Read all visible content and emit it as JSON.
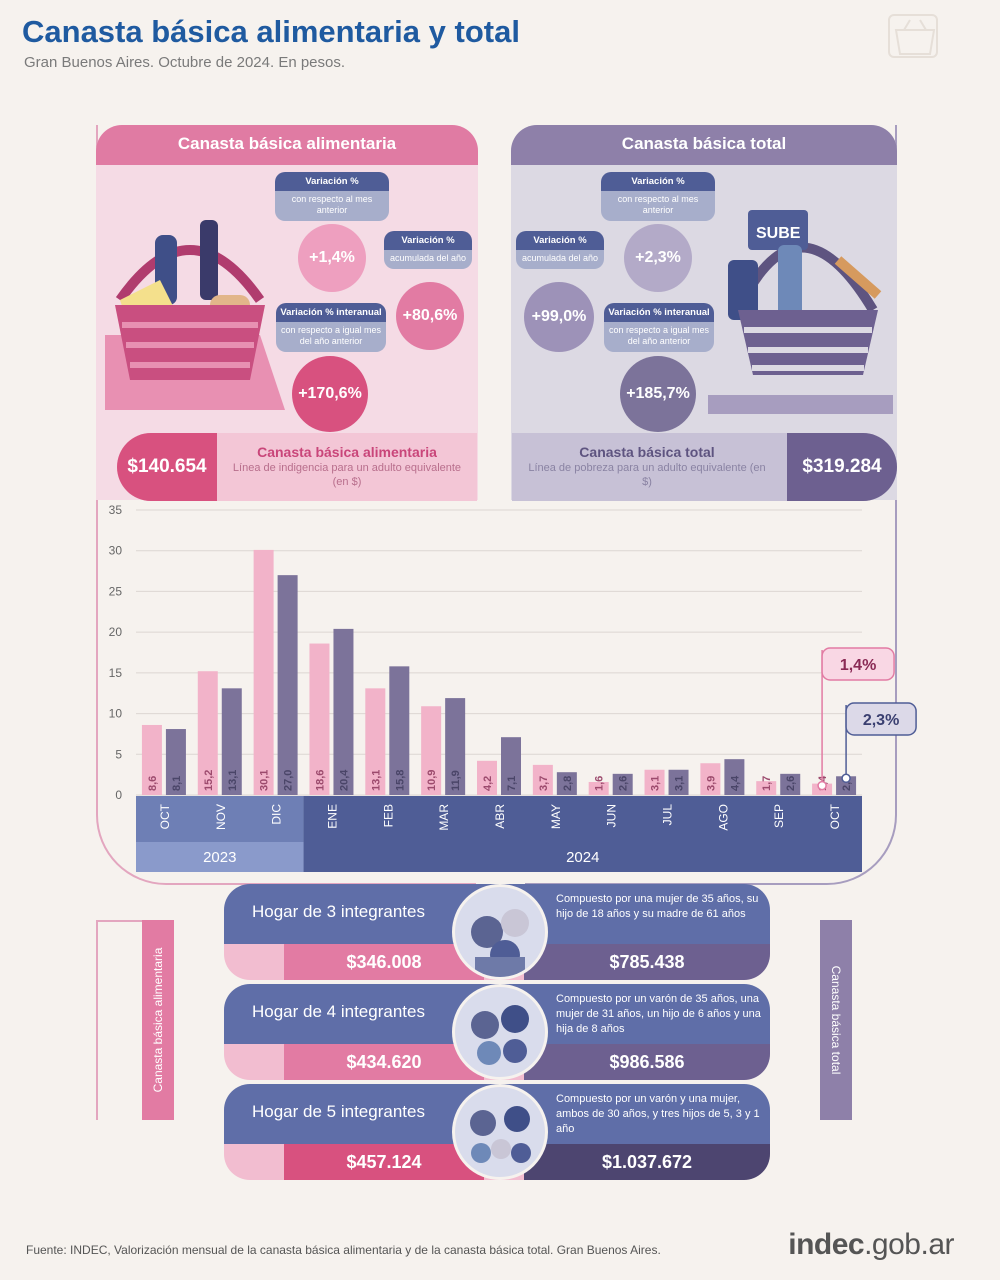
{
  "header": {
    "title": "Canasta básica alimentaria y total",
    "subtitle": "Gran Buenos Aires. Octubre de 2024. En pesos."
  },
  "cba_panel": {
    "title": "Canasta básica alimentaria",
    "var_month": {
      "title": "Variación %",
      "sub": "con respecto al mes anterior",
      "value": "+1,4%"
    },
    "var_year": {
      "title": "Variación %",
      "sub": "acumulada del año",
      "value": "+80,6%"
    },
    "var_interanual": {
      "title": "Variación % interanual",
      "sub": "con respecto a igual mes del año anterior",
      "value": "+170,6%"
    },
    "amount": "$140.654",
    "line_title": "Canasta básica alimentaria",
    "line_sub": "Línea de indigencia para un adulto equivalente (en $)"
  },
  "cbt_panel": {
    "title": "Canasta básica total",
    "var_month": {
      "title": "Variación %",
      "sub": "con respecto al mes anterior",
      "value": "+2,3%"
    },
    "var_year": {
      "title": "Variación %",
      "sub": "acumulada del año",
      "value": "+99,0%"
    },
    "var_interanual": {
      "title": "Variación % interanual",
      "sub": "con respecto a igual mes del año anterior",
      "value": "+185,7%"
    },
    "amount": "$319.284",
    "line_title": "Canasta básica total",
    "line_sub": "Línea de pobreza para un adulto equivalente (en $)",
    "basket_card_text": "SUBE"
  },
  "chart_data": {
    "type": "bar",
    "categories": [
      "OCT",
      "NOV",
      "DIC",
      "ENE",
      "FEB",
      "MAR",
      "ABR",
      "MAY",
      "JUN",
      "JUL",
      "AGO",
      "SEP",
      "OCT"
    ],
    "years": [
      {
        "label": "2023",
        "span": 3
      },
      {
        "label": "2024",
        "span": 10
      }
    ],
    "series": [
      {
        "values": [
          8.6,
          15.2,
          30.1,
          18.6,
          13.1,
          10.9,
          4.2,
          3.7,
          1.6,
          3.1,
          3.9,
          1.7,
          1.4
        ],
        "labels": [
          "8,6",
          "15,2",
          "30,1",
          "18,6",
          "13,1",
          "10,9",
          "4,2",
          "3,7",
          "1,6",
          "3,1",
          "3,9",
          "1,7",
          "1,4"
        ],
        "color": "#f2b3c9"
      },
      {
        "values": [
          8.1,
          13.1,
          27.0,
          20.4,
          15.8,
          11.9,
          7.1,
          2.8,
          2.6,
          3.1,
          4.4,
          2.6,
          2.3
        ],
        "labels": [
          "8,1",
          "13,1",
          "27,0",
          "20,4",
          "15,8",
          "11,9",
          "7,1",
          "2,8",
          "2,6",
          "3,1",
          "4,4",
          "2,6",
          "2,3"
        ],
        "color": "#7c739a"
      }
    ],
    "ylim": [
      0,
      35
    ],
    "yticks": [
      0,
      5,
      10,
      15,
      20,
      25,
      30,
      35
    ],
    "callouts": [
      "1,4%",
      "2,3%"
    ],
    "grid": true
  },
  "households": [
    {
      "title": "Hogar de 3 integrantes",
      "desc": "Compuesto por una mujer de 35 años, su hijo de 18 años y su madre de 61 años",
      "cba": "$346.008",
      "cbt": "$785.438"
    },
    {
      "title": "Hogar de 4 integrantes",
      "desc": "Compuesto por un varón de 35 años, una mujer de 31 años, un hijo de 6 años y una hija de 8 años",
      "cba": "$434.620",
      "cbt": "$986.586"
    },
    {
      "title": "Hogar de 5 integrantes",
      "desc": "Compuesto por un varón y una mujer, ambos de 30 años, y tres hijos de 5, 3 y 1 año",
      "cba": "$457.124",
      "cbt": "$1.037.672"
    }
  ],
  "side_labels": {
    "left": "Canasta básica alimentaria",
    "right": "Canasta básica total"
  },
  "footer": {
    "source": "Fuente: INDEC, Valorización mensual de la canasta básica alimentaria y de la canasta básica total. Gran Buenos Aires.",
    "logo_main": "indec",
    "logo_suffix": ".gob.ar"
  }
}
